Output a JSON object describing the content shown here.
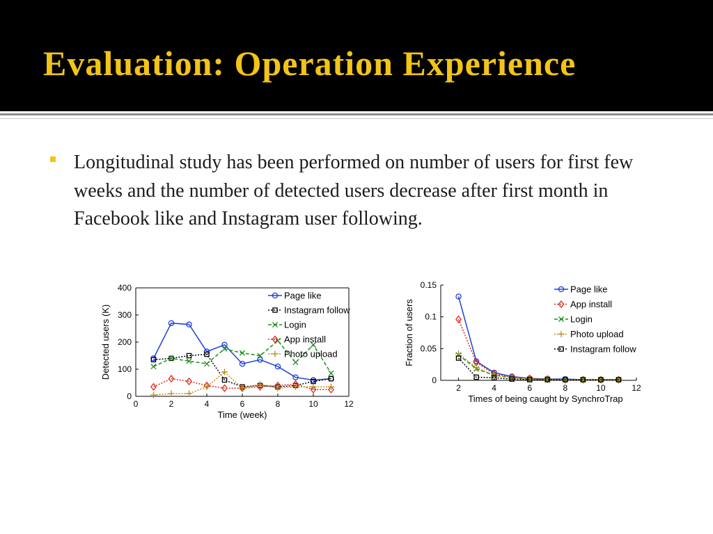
{
  "slide": {
    "title": "Evaluation: Operation Experience",
    "bullets": [
      {
        "text": "Longitudinal study has been performed on number of users for first few weeks and the number of detected users decrease after first month in Facebook like and Instagram user following."
      }
    ]
  },
  "colors": {
    "title_bg": "#000000",
    "title_text": "#f2c418",
    "bullet_marker": "#f2c418",
    "body_text": "#1c1c1c"
  },
  "chart_data": [
    {
      "type": "line",
      "title": "",
      "xlabel": "Time (week)",
      "ylabel": "Detected users (K)",
      "xlim": [
        0,
        12
      ],
      "ylim": [
        0,
        400
      ],
      "xticks": [
        0,
        2,
        4,
        6,
        8,
        10,
        12
      ],
      "yticks": [
        0,
        100,
        200,
        300,
        400
      ],
      "legend_position": "top-right",
      "x": [
        1,
        2,
        3,
        4,
        5,
        6,
        7,
        8,
        9,
        10,
        11
      ],
      "series": [
        {
          "name": "Page like",
          "marker": "circle",
          "line": "solid",
          "color": "#1f3fdb",
          "values": [
            140,
            270,
            265,
            165,
            190,
            120,
            135,
            110,
            70,
            60,
            65
          ]
        },
        {
          "name": "Instagram follow",
          "marker": "square",
          "line": "dotted",
          "color": "#000000",
          "values": [
            135,
            140,
            150,
            155,
            60,
            35,
            40,
            35,
            40,
            55,
            65
          ]
        },
        {
          "name": "Login",
          "marker": "x",
          "line": "dashed",
          "color": "#1a8f1a",
          "values": [
            110,
            140,
            130,
            120,
            175,
            160,
            150,
            205,
            125,
            190,
            85
          ]
        },
        {
          "name": "App install",
          "marker": "diamond",
          "line": "dotted",
          "color": "#e0281e",
          "values": [
            35,
            65,
            55,
            40,
            30,
            30,
            35,
            40,
            45,
            25,
            25
          ]
        },
        {
          "name": "Photo upload",
          "marker": "plus",
          "line": "dotted",
          "color": "#c08a1a",
          "values": [
            5,
            10,
            10,
            35,
            90,
            30,
            45,
            30,
            35,
            35,
            35
          ]
        }
      ]
    },
    {
      "type": "line",
      "title": "",
      "xlabel": "Times of being caught by SynchroTrap",
      "ylabel": "Fraction of users",
      "xlim": [
        1,
        12
      ],
      "ylim": [
        0,
        0.15
      ],
      "xticks": [
        2,
        4,
        6,
        8,
        10,
        12
      ],
      "yticks": [
        0,
        0.05,
        0.1,
        0.15
      ],
      "ytick_labels": [
        "0",
        "0.05",
        "0.1",
        "0.15"
      ],
      "legend_position": "top-right",
      "x": [
        2,
        3,
        4,
        5,
        6,
        7,
        8,
        9,
        10,
        11
      ],
      "series": [
        {
          "name": "Page like",
          "marker": "circle",
          "line": "solid",
          "color": "#1f3fdb",
          "values": [
            0.132,
            0.03,
            0.012,
            0.006,
            0.003,
            0.002,
            0.002,
            0.001,
            0.001,
            0.001
          ]
        },
        {
          "name": "App install",
          "marker": "diamond",
          "line": "dotted",
          "color": "#e0281e",
          "values": [
            0.096,
            0.028,
            0.01,
            0.005,
            0.003,
            0.002,
            0.001,
            0.001,
            0.001,
            0.001
          ]
        },
        {
          "name": "Login",
          "marker": "x",
          "line": "dashed",
          "color": "#1a8f1a",
          "values": [
            0.04,
            0.018,
            0.008,
            0.004,
            0.002,
            0.002,
            0.001,
            0.001,
            0.001,
            0.001
          ]
        },
        {
          "name": "Photo upload",
          "marker": "plus",
          "line": "dotted",
          "color": "#c08a1a",
          "values": [
            0.042,
            0.02,
            0.008,
            0.004,
            0.002,
            0.001,
            0.001,
            0.001,
            0.001,
            0.001
          ]
        },
        {
          "name": "Instagram follow",
          "marker": "square",
          "line": "dotted",
          "color": "#000000",
          "values": [
            0.035,
            0.005,
            0.004,
            0.002,
            0.001,
            0.001,
            0.001,
            0.001,
            0.001,
            0.001
          ]
        }
      ]
    }
  ]
}
